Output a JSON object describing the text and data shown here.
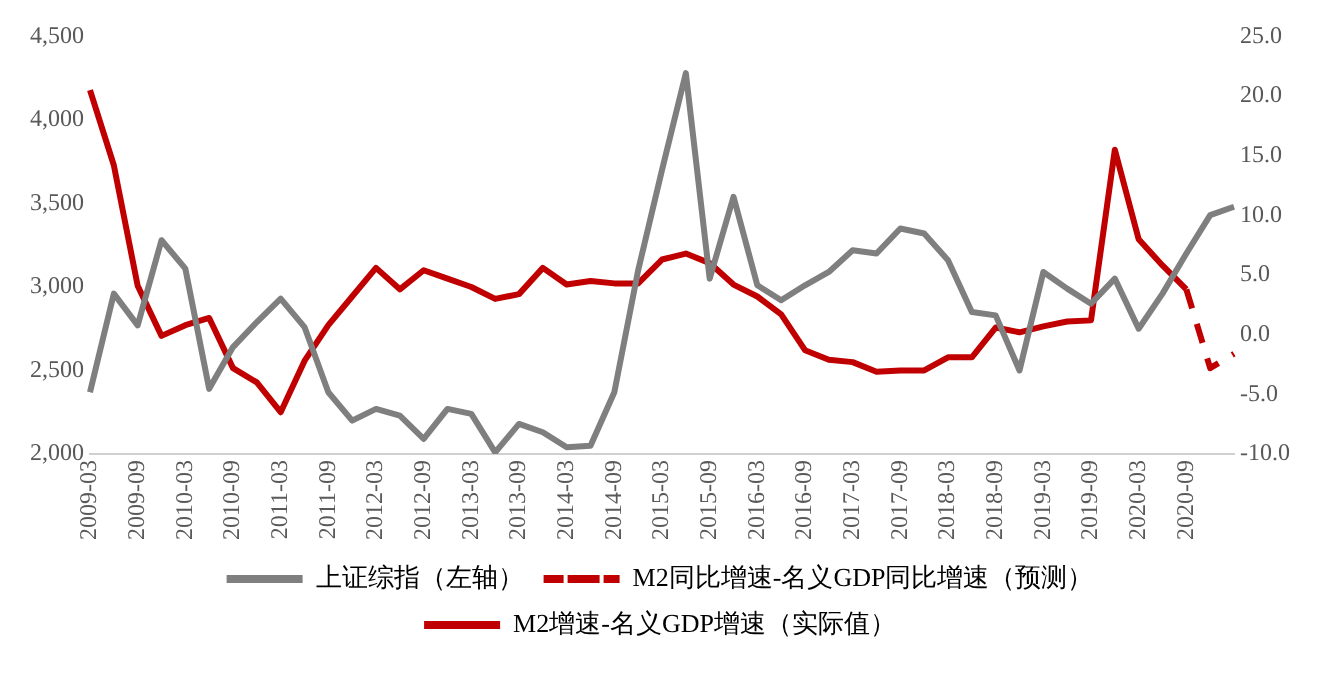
{
  "chart_data": {
    "type": "line",
    "categories": [
      "2009-03",
      null,
      "2009-09",
      null,
      "2010-03",
      null,
      "2010-09",
      null,
      "2011-03",
      null,
      "2011-09",
      null,
      "2012-03",
      null,
      "2012-09",
      null,
      "2013-03",
      null,
      "2013-09",
      null,
      "2014-03",
      null,
      "2014-09",
      null,
      "2015-03",
      null,
      "2015-09",
      null,
      "2016-03",
      null,
      "2016-09",
      null,
      "2017-03",
      null,
      "2017-09",
      null,
      "2018-03",
      null,
      "2018-09",
      null,
      "2019-03",
      null,
      "2019-09",
      null,
      "2020-03",
      null,
      "2020-09",
      null,
      null
    ],
    "series": [
      {
        "name": "上证综指（左轴）",
        "color": "#7f7f7f",
        "axis": "y",
        "line_style": "solid",
        "values": [
          2370,
          2960,
          2770,
          3280,
          3110,
          2390,
          2640,
          2790,
          2930,
          2760,
          2370,
          2200,
          2270,
          2230,
          2090,
          2270,
          2240,
          2010,
          2180,
          2130,
          2040,
          2050,
          2370,
          3100,
          3700,
          4280,
          3050,
          3540,
          3010,
          2920,
          3010,
          3090,
          3220,
          3200,
          3350,
          3320,
          3160,
          2850,
          2830,
          2500,
          3090,
          2990,
          2900,
          3050,
          2750,
          2960,
          3200,
          3430,
          3480
        ]
      },
      {
        "name": "M2同比增速-名义GDP同比增速（预测）",
        "color": "#c00000",
        "axis": "y2",
        "line_style": "dashed",
        "values": [
          null,
          null,
          null,
          null,
          null,
          null,
          null,
          null,
          null,
          null,
          null,
          null,
          null,
          null,
          null,
          null,
          null,
          null,
          null,
          null,
          null,
          null,
          null,
          null,
          null,
          null,
          null,
          null,
          null,
          null,
          null,
          null,
          null,
          null,
          null,
          null,
          null,
          null,
          null,
          null,
          null,
          null,
          null,
          null,
          null,
          null,
          3.8,
          -2.8,
          -1.6
        ]
      },
      {
        "name": "M2增速-名义GDP增速（实际值）",
        "color": "#c00000",
        "axis": "y2",
        "line_style": "solid",
        "values": [
          20.5,
          14.2,
          4.1,
          -0.1,
          0.8,
          1.4,
          -2.8,
          -4.0,
          -6.5,
          -2.2,
          0.8,
          3.2,
          5.6,
          3.8,
          5.4,
          4.7,
          4.0,
          3.0,
          3.4,
          5.6,
          4.2,
          4.5,
          4.3,
          4.3,
          6.3,
          6.8,
          6.0,
          4.2,
          3.2,
          1.7,
          -1.3,
          -2.1,
          -2.3,
          -3.1,
          -3.0,
          -3.0,
          -1.9,
          -1.9,
          0.6,
          0.2,
          0.7,
          1.1,
          1.2,
          15.5,
          8.0,
          5.8,
          3.8,
          null,
          null
        ]
      }
    ],
    "ylim": [
      2000,
      4500
    ],
    "yticks": [
      {
        "value": 2000,
        "label": "2,000"
      },
      {
        "value": 2500,
        "label": "2,500"
      },
      {
        "value": 3000,
        "label": "3,000"
      },
      {
        "value": 3500,
        "label": "3,500"
      },
      {
        "value": 4000,
        "label": "4,000"
      },
      {
        "value": 4500,
        "label": "4,500"
      }
    ],
    "y2lim": [
      -10,
      25
    ],
    "y2ticks": [
      {
        "value": -10,
        "label": "-10.0"
      },
      {
        "value": -5,
        "label": "-5.0"
      },
      {
        "value": 0,
        "label": "0.0"
      },
      {
        "value": 5,
        "label": "5.0"
      },
      {
        "value": 10,
        "label": "10.0"
      },
      {
        "value": 15,
        "label": "15.0"
      },
      {
        "value": 20,
        "label": "20.0"
      },
      {
        "value": 25,
        "label": "25.0"
      }
    ],
    "grid": false,
    "legend": "bottom",
    "marker": "none"
  }
}
